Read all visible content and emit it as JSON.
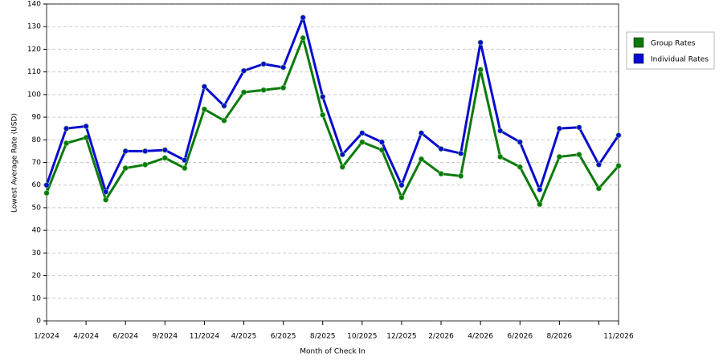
{
  "chart_data": {
    "type": "line",
    "x_label": "Month of Check In",
    "y_label": "Lowest Average Rate (USD)",
    "categories": [
      "1/2024",
      null,
      "4/2024",
      null,
      "6/2024",
      null,
      "9/2024",
      null,
      "11/2024",
      null,
      "4/2025",
      null,
      "6/2025",
      null,
      "8/2025",
      null,
      "10/2025",
      null,
      "12/2025",
      null,
      "2/2026",
      null,
      "4/2026",
      null,
      "6/2026",
      null,
      "8/2026",
      null,
      null,
      "11/2026"
    ],
    "series": [
      {
        "name": "Group Rates",
        "color": "#0a7a0a",
        "values": [
          56.5,
          78.5,
          81,
          53.5,
          67.5,
          69,
          72,
          67.5,
          93.5,
          88.5,
          101,
          102,
          103,
          125,
          91,
          68,
          79,
          75.5,
          54.5,
          71.5,
          65,
          64,
          111,
          72.5,
          68,
          51.5,
          72.5,
          73.5,
          58.5,
          68.5
        ]
      },
      {
        "name": "Individual Rates",
        "color": "#0a0ad0",
        "values": [
          60,
          85,
          86,
          57,
          75,
          75,
          75.5,
          71,
          103.5,
          95,
          110.5,
          113.5,
          112,
          134,
          99,
          73.5,
          83,
          79,
          60,
          83,
          76,
          74,
          123,
          84,
          79,
          58,
          85,
          85.5,
          69,
          82
        ]
      }
    ],
    "ylim": [
      0,
      140
    ],
    "yticks": [
      0,
      10,
      20,
      30,
      40,
      50,
      60,
      70,
      80,
      90,
      100,
      110,
      120,
      130,
      140
    ],
    "grid": true,
    "legend": "right"
  }
}
